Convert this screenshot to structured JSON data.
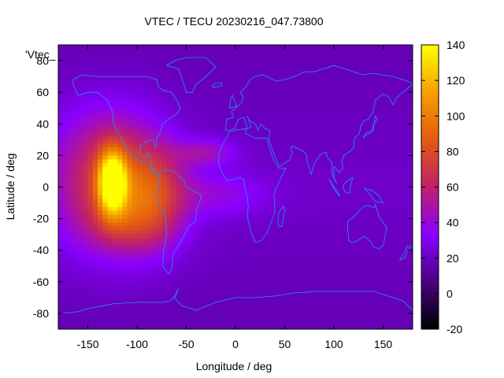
{
  "chart_data": {
    "type": "heatmap",
    "title": "VTEC / TECU 20230216_047.73800",
    "xlabel": "Longitude / deg",
    "ylabel": "Latitude / deg",
    "xlim": [
      -180,
      180
    ],
    "ylim": [
      -90,
      90
    ],
    "x_ticks": [
      "-150",
      "-100",
      "-50",
      "0",
      "50",
      "100",
      "150"
    ],
    "x_tick_values": [
      -150,
      -100,
      -50,
      0,
      50,
      100,
      150
    ],
    "y_ticks": [
      "80",
      "60",
      "40",
      "20",
      "0",
      "-20",
      "-40",
      "-60",
      "-80"
    ],
    "y_tick_values": [
      80,
      60,
      40,
      20,
      0,
      -20,
      -40,
      -60,
      -80
    ],
    "colorbar": {
      "range": [
        -20,
        140
      ],
      "ticks": [
        "140",
        "120",
        "100",
        "80",
        "60",
        "40",
        "20",
        "0",
        "-20"
      ],
      "tick_values": [
        140,
        120,
        100,
        80,
        60,
        40,
        20,
        0,
        -20
      ],
      "colormap": [
        "#000000",
        "#4b0082",
        "#8a00ff",
        "#c0206a",
        "#e35a10",
        "#f5a000",
        "#ffff00"
      ]
    },
    "legend": "'Vtec_",
    "legend_placement": "top-left",
    "background_value": 22,
    "coastline_color": "#1e90ff",
    "hotspots": [
      {
        "lon": -125,
        "lat": 3,
        "peak": 138,
        "sigma_lon": 10,
        "sigma_lat": 14
      },
      {
        "lon": -130,
        "lat": 5,
        "peak": 78,
        "sigma_lon": 38,
        "sigma_lat": 30
      },
      {
        "lon": -85,
        "lat": -5,
        "peak": 70,
        "sigma_lon": 25,
        "sigma_lat": 22
      },
      {
        "lon": -30,
        "lat": 22,
        "peak": 48,
        "sigma_lon": 22,
        "sigma_lat": 6
      },
      {
        "lon": -15,
        "lat": -5,
        "peak": 40,
        "sigma_lon": 35,
        "sigma_lat": 10
      },
      {
        "lon": -110,
        "lat": -25,
        "peak": 40,
        "sigma_lon": 30,
        "sigma_lat": 12
      }
    ]
  }
}
